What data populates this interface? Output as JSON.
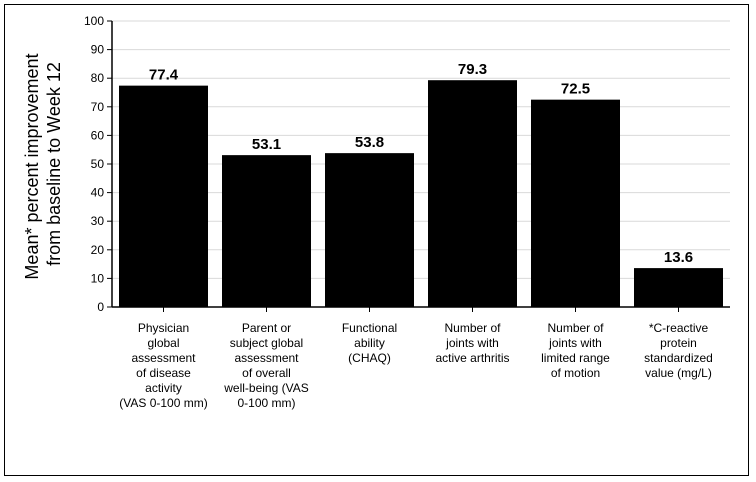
{
  "chart_data": {
    "type": "bar",
    "ylabel_lines": [
      "Mean* percent improvement",
      "from baseline to Week 12"
    ],
    "ylim": [
      0,
      100
    ],
    "ytick_step": 10,
    "grid": true,
    "categories": [
      "Physician global assessment of disease activity (VAS 0-100 mm)",
      "Parent or subject global assessment of overall well-being (VAS 0-100 mm)",
      "Functional ability (CHAQ)",
      "Number of joints with active arthritis",
      "Number of joints with limited range of motion",
      "*C-reactive protein standardized value (mg/L)"
    ],
    "category_lines": [
      [
        "Physician",
        "global",
        "assessment",
        "of disease",
        "activity",
        "(VAS 0-100 mm)"
      ],
      [
        "Parent or",
        "subject global",
        "assessment",
        "of overall",
        "well-being (VAS",
        "0-100 mm)"
      ],
      [
        "Functional",
        "ability",
        "(CHAQ)"
      ],
      [
        "Number of",
        "joints with",
        "active arthritis"
      ],
      [
        "Number of",
        "joints with",
        "limited range",
        "of motion"
      ],
      [
        "*C-reactive",
        "protein",
        "standardized",
        "value (mg/L)"
      ]
    ],
    "values": [
      77.4,
      53.1,
      53.8,
      79.3,
      72.5,
      13.6
    ],
    "value_labels": [
      "77.4",
      "53.1",
      "53.8",
      "79.3",
      "72.5",
      "13.6"
    ],
    "bar_color": "#000000",
    "grid_color": "#d9d9d9"
  }
}
